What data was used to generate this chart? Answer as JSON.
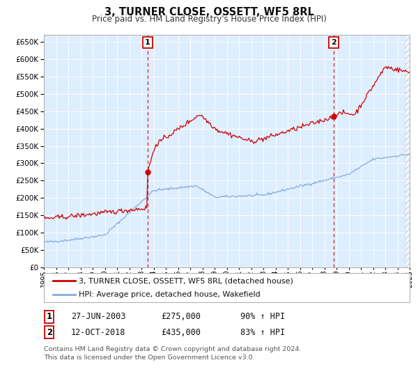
{
  "title1": "3, TURNER CLOSE, OSSETT, WF5 8RL",
  "title2": "Price paid vs. HM Land Registry's House Price Index (HPI)",
  "ylim": [
    0,
    670000
  ],
  "yticks": [
    0,
    50000,
    100000,
    150000,
    200000,
    250000,
    300000,
    350000,
    400000,
    450000,
    500000,
    550000,
    600000,
    650000
  ],
  "xstart": 1995,
  "xend": 2025,
  "red_color": "#cc0000",
  "blue_color": "#88aadd",
  "bg_color": "#ddeeff",
  "sale1_year": 2003.49,
  "sale1_value": 275000,
  "sale2_year": 2018.78,
  "sale2_value": 435000,
  "legend_label1": "3, TURNER CLOSE, OSSETT, WF5 8RL (detached house)",
  "legend_label2": "HPI: Average price, detached house, Wakefield",
  "table_label1_num": "1",
  "table_label1_date": "27-JUN-2003",
  "table_label1_price": "£275,000",
  "table_label1_hpi": "90% ↑ HPI",
  "table_label2_num": "2",
  "table_label2_date": "12-OCT-2018",
  "table_label2_price": "£435,000",
  "table_label2_hpi": "83% ↑ HPI",
  "footer": "Contains HM Land Registry data © Crown copyright and database right 2024.\nThis data is licensed under the Open Government Licence v3.0."
}
